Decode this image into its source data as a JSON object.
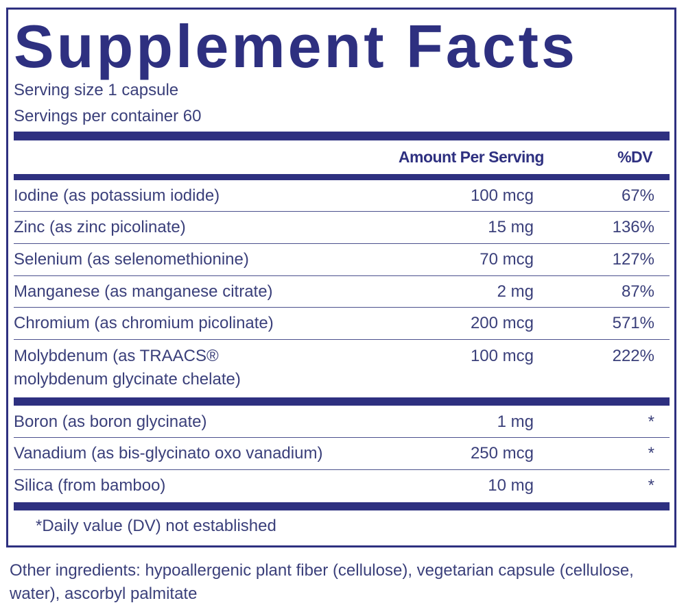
{
  "title": "Supplement Facts",
  "serving_size": "Serving size  1 capsule",
  "servings_per_container": "Servings per container  60",
  "header": {
    "amount": "Amount Per Serving",
    "dv": "%DV"
  },
  "nutrients_a": [
    {
      "name": "Iodine (as potassium iodide)",
      "amount": "100 mcg",
      "dv": "67%"
    },
    {
      "name": "Zinc (as zinc picolinate)",
      "amount": "15 mg",
      "dv": "136%"
    },
    {
      "name": "Selenium (as selenomethionine)",
      "amount": "70 mcg",
      "dv": "127%"
    },
    {
      "name": "Manganese (as manganese citrate)",
      "amount": "2 mg",
      "dv": "87%"
    },
    {
      "name": "Chromium (as chromium picolinate)",
      "amount": "200 mcg",
      "dv": "571%"
    },
    {
      "name": "Molybdenum (as TRAACS®",
      "name_line2": "molybdenum glycinate chelate)",
      "amount": "100 mcg",
      "dv": "222%"
    }
  ],
  "nutrients_b": [
    {
      "name": "Boron (as boron glycinate)",
      "amount": "1 mg",
      "dv": "*"
    },
    {
      "name": "Vanadium (as bis-glycinato oxo vanadium)",
      "amount": "250 mcg",
      "dv": "*"
    },
    {
      "name": "Silica (from bamboo)",
      "amount": "10 mg",
      "dv": "*"
    }
  ],
  "footnote": "*Daily value (DV) not established",
  "other_ingredients": "Other ingredients: hypoallergenic plant fiber (cellulose), vegetarian capsule (cellulose, water), ascorbyl palmitate",
  "colors": {
    "navy": "#2e3080",
    "text": "#3a3f7a"
  }
}
